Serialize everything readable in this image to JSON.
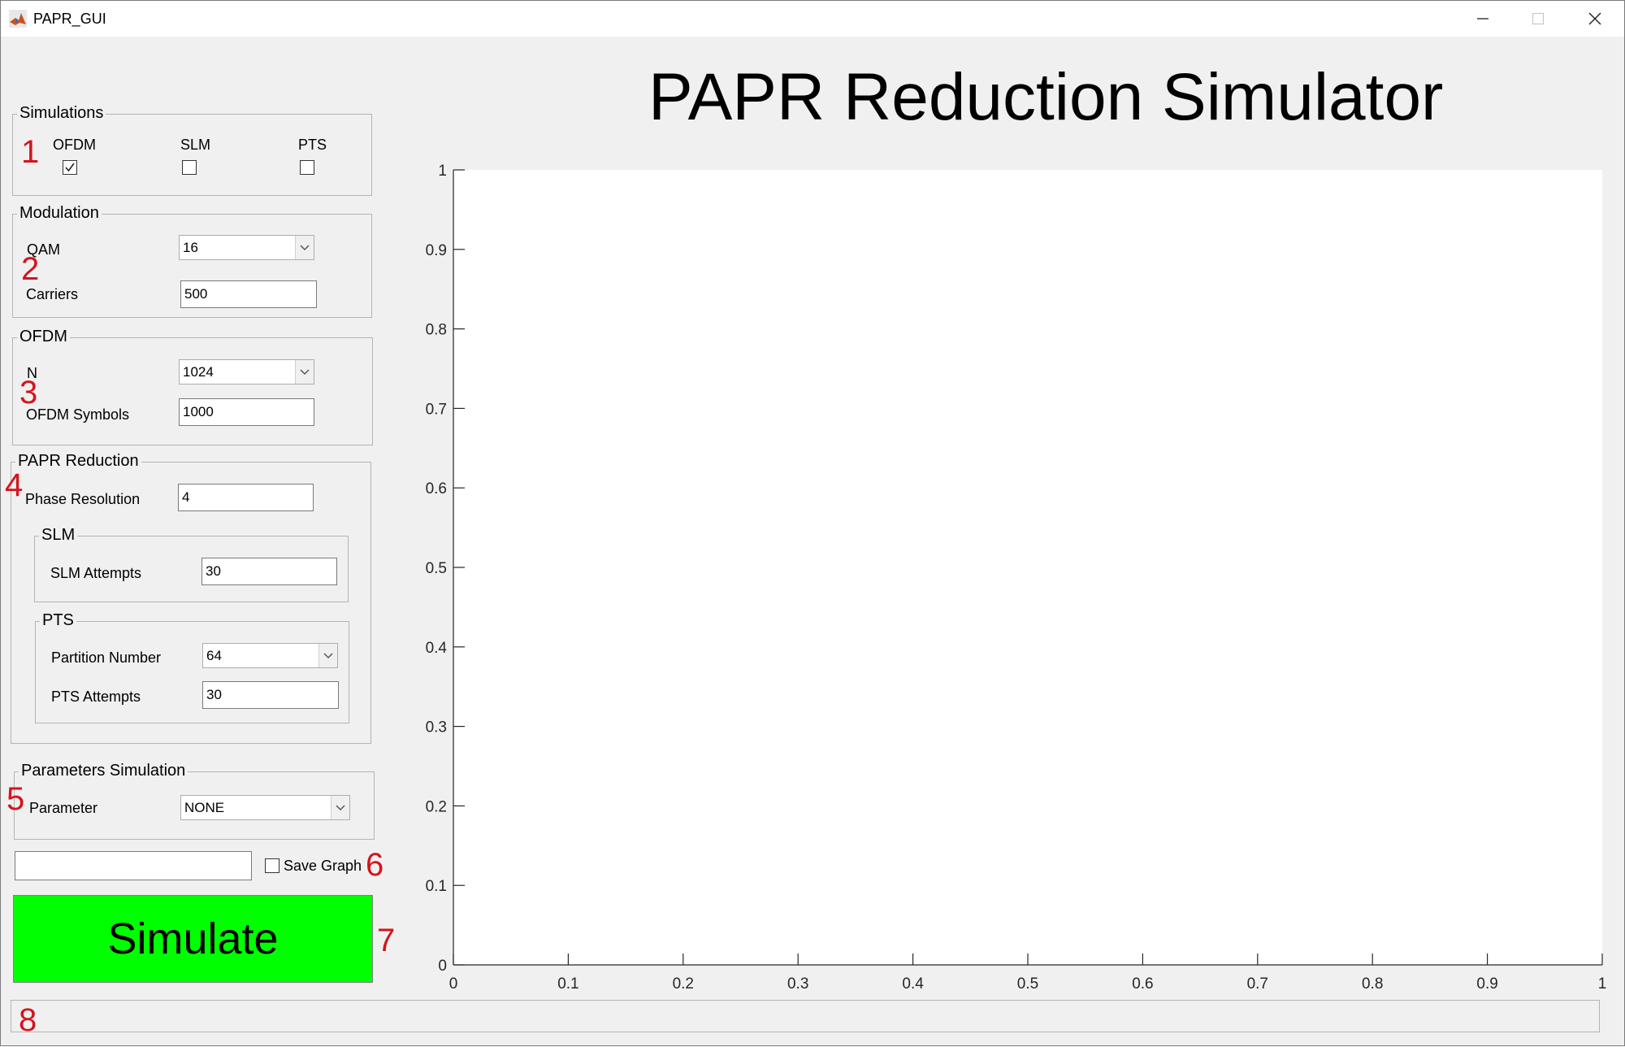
{
  "window": {
    "title": "PAPR_GUI"
  },
  "heading": "PAPR Reduction Simulator",
  "simulations": {
    "title": "Simulations",
    "options": [
      {
        "label": "OFDM",
        "checked": true
      },
      {
        "label": "SLM",
        "checked": false
      },
      {
        "label": "PTS",
        "checked": false
      }
    ]
  },
  "modulation": {
    "title": "Modulation",
    "qam_label": "QAM",
    "qam_value": "16",
    "carriers_label": "Carriers",
    "carriers_value": "500"
  },
  "ofdm": {
    "title": "OFDM",
    "n_label": "N",
    "n_value": "1024",
    "symbols_label": "OFDM Symbols",
    "symbols_value": "1000"
  },
  "papr": {
    "title": "PAPR Reduction",
    "phase_label": "Phase Resolution",
    "phase_value": "4",
    "slm": {
      "title": "SLM",
      "attempts_label": "SLM Attempts",
      "attempts_value": "30"
    },
    "pts": {
      "title": "PTS",
      "partition_label": "Partition Number",
      "partition_value": "64",
      "attempts_label": "PTS Attempts",
      "attempts_value": "30"
    }
  },
  "params": {
    "title": "Parameters Simulation",
    "parameter_label": "Parameter",
    "parameter_value": "NONE"
  },
  "save": {
    "filename_value": "",
    "label": "Save Graph",
    "checked": false
  },
  "simulate_label": "Simulate",
  "status_text": "",
  "markers": [
    "1",
    "2",
    "3",
    "4",
    "5",
    "6",
    "7",
    "8"
  ],
  "chart_data": {
    "type": "line",
    "series": [],
    "xlim": [
      0,
      1
    ],
    "ylim": [
      0,
      1
    ],
    "xticks": [
      "0",
      "0.1",
      "0.2",
      "0.3",
      "0.4",
      "0.5",
      "0.6",
      "0.7",
      "0.8",
      "0.9",
      "1"
    ],
    "yticks": [
      "0",
      "0.1",
      "0.2",
      "0.3",
      "0.4",
      "0.5",
      "0.6",
      "0.7",
      "0.8",
      "0.9",
      "1"
    ],
    "grid": false
  }
}
